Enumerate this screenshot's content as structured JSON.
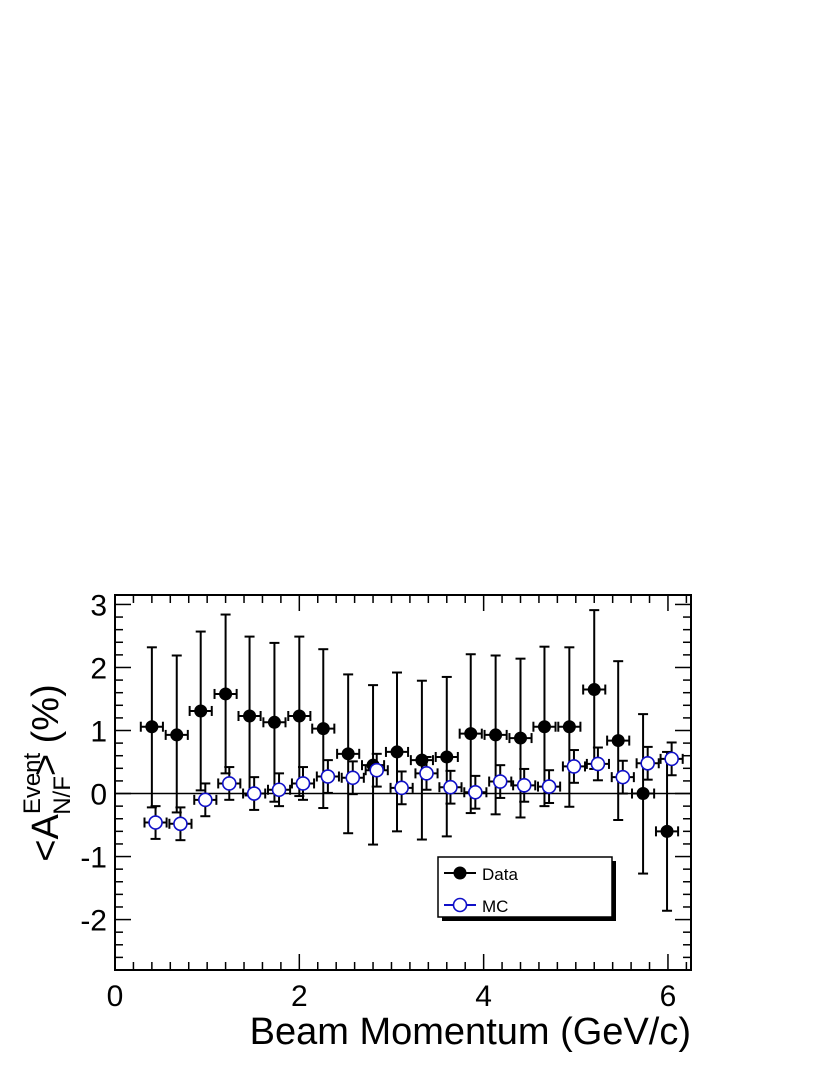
{
  "chart_data": {
    "type": "scatter",
    "xlabel": "Beam Momentum (GeV/c)",
    "ylabel": {
      "base": "<A",
      "sup": "Event",
      "sub": "N/F",
      "suffix": "> (%)"
    },
    "xlim": [
      0,
      6.25
    ],
    "ylim": [
      -2.8,
      3.15
    ],
    "x_ticks": [
      0,
      2,
      4,
      6
    ],
    "y_ticks": [
      -2,
      -1,
      0,
      1,
      2,
      3
    ],
    "x_tick_labels": [
      "0",
      "2",
      "4",
      "6"
    ],
    "y_tick_labels": [
      "-2",
      "-1",
      "0",
      "1",
      "2",
      "3"
    ],
    "x_minor_step": 0.2,
    "y_minor_step": 0.2,
    "reference_line_y": 0,
    "legend_position": "lower-right",
    "series": [
      {
        "name": "Data",
        "marker": "filled-circle",
        "color": "#000000",
        "x_err": 0.12,
        "points": [
          {
            "x": 0.4,
            "y": 1.06,
            "ylo": -0.22,
            "yhi": 2.32
          },
          {
            "x": 0.67,
            "y": 0.93,
            "ylo": -0.3,
            "yhi": 2.19
          },
          {
            "x": 0.93,
            "y": 1.31,
            "ylo": 0.05,
            "yhi": 2.57
          },
          {
            "x": 1.2,
            "y": 1.58,
            "ylo": 0.32,
            "yhi": 2.84
          },
          {
            "x": 1.46,
            "y": 1.23,
            "ylo": -0.03,
            "yhi": 2.49
          },
          {
            "x": 1.73,
            "y": 1.13,
            "ylo": -0.13,
            "yhi": 2.39
          },
          {
            "x": 2.0,
            "y": 1.23,
            "ylo": -0.04,
            "yhi": 2.49
          },
          {
            "x": 2.26,
            "y": 1.03,
            "ylo": -0.23,
            "yhi": 2.29
          },
          {
            "x": 2.53,
            "y": 0.63,
            "ylo": -0.63,
            "yhi": 1.89
          },
          {
            "x": 2.8,
            "y": 0.45,
            "ylo": -0.81,
            "yhi": 1.72
          },
          {
            "x": 3.06,
            "y": 0.66,
            "ylo": -0.6,
            "yhi": 1.92
          },
          {
            "x": 3.33,
            "y": 0.53,
            "ylo": -0.73,
            "yhi": 1.79
          },
          {
            "x": 3.6,
            "y": 0.58,
            "ylo": -0.68,
            "yhi": 1.85
          },
          {
            "x": 3.86,
            "y": 0.95,
            "ylo": -0.31,
            "yhi": 2.21
          },
          {
            "x": 4.13,
            "y": 0.93,
            "ylo": -0.33,
            "yhi": 2.19
          },
          {
            "x": 4.4,
            "y": 0.88,
            "ylo": -0.38,
            "yhi": 2.14
          },
          {
            "x": 4.66,
            "y": 1.06,
            "ylo": -0.2,
            "yhi": 2.33
          },
          {
            "x": 4.93,
            "y": 1.06,
            "ylo": -0.21,
            "yhi": 2.32
          },
          {
            "x": 5.2,
            "y": 1.65,
            "ylo": 0.39,
            "yhi": 2.91
          },
          {
            "x": 5.46,
            "y": 0.84,
            "ylo": -0.42,
            "yhi": 2.1
          },
          {
            "x": 5.73,
            "y": 0.0,
            "ylo": -1.27,
            "yhi": 1.26
          },
          {
            "x": 5.99,
            "y": -0.6,
            "ylo": -1.86,
            "yhi": 0.66
          }
        ]
      },
      {
        "name": "MC",
        "marker": "open-circle",
        "color": "#1010c8",
        "x_err": 0.12,
        "points": [
          {
            "x": 0.44,
            "y": -0.46,
            "ylo": -0.72,
            "yhi": -0.2
          },
          {
            "x": 0.71,
            "y": -0.48,
            "ylo": -0.74,
            "yhi": -0.22
          },
          {
            "x": 0.98,
            "y": -0.1,
            "ylo": -0.36,
            "yhi": 0.16
          },
          {
            "x": 1.24,
            "y": 0.16,
            "ylo": -0.1,
            "yhi": 0.42
          },
          {
            "x": 1.51,
            "y": 0.0,
            "ylo": -0.26,
            "yhi": 0.26
          },
          {
            "x": 1.78,
            "y": 0.06,
            "ylo": -0.2,
            "yhi": 0.32
          },
          {
            "x": 2.04,
            "y": 0.16,
            "ylo": -0.1,
            "yhi": 0.42
          },
          {
            "x": 2.31,
            "y": 0.27,
            "ylo": 0.01,
            "yhi": 0.53
          },
          {
            "x": 2.58,
            "y": 0.25,
            "ylo": -0.01,
            "yhi": 0.51
          },
          {
            "x": 2.84,
            "y": 0.37,
            "ylo": 0.11,
            "yhi": 0.63
          },
          {
            "x": 3.11,
            "y": 0.09,
            "ylo": -0.17,
            "yhi": 0.35
          },
          {
            "x": 3.38,
            "y": 0.32,
            "ylo": 0.06,
            "yhi": 0.58
          },
          {
            "x": 3.64,
            "y": 0.1,
            "ylo": -0.16,
            "yhi": 0.36
          },
          {
            "x": 3.91,
            "y": 0.02,
            "ylo": -0.24,
            "yhi": 0.28
          },
          {
            "x": 4.18,
            "y": 0.19,
            "ylo": -0.07,
            "yhi": 0.45
          },
          {
            "x": 4.44,
            "y": 0.13,
            "ylo": -0.13,
            "yhi": 0.39
          },
          {
            "x": 4.71,
            "y": 0.11,
            "ylo": -0.15,
            "yhi": 0.37
          },
          {
            "x": 4.98,
            "y": 0.43,
            "ylo": 0.17,
            "yhi": 0.69
          },
          {
            "x": 5.24,
            "y": 0.47,
            "ylo": 0.21,
            "yhi": 0.73
          },
          {
            "x": 5.51,
            "y": 0.26,
            "ylo": 0.0,
            "yhi": 0.52
          },
          {
            "x": 5.78,
            "y": 0.48,
            "ylo": 0.22,
            "yhi": 0.74
          },
          {
            "x": 6.04,
            "y": 0.55,
            "ylo": 0.29,
            "yhi": 0.81
          }
        ]
      }
    ]
  }
}
